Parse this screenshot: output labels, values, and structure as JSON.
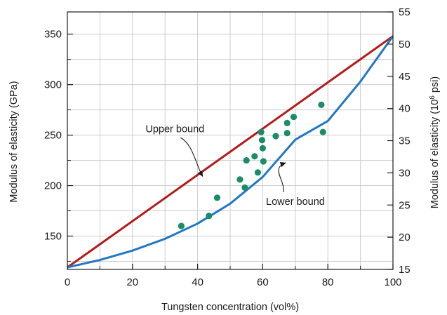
{
  "chart_data": {
    "type": "scatter",
    "xlabel": "Tungsten concentration (vol%)",
    "ylabel": "Modulus of elasticity (GPa)",
    "ylabel_right": {
      "prefix": "Modulus of elasticity (10",
      "sup": "6",
      "suffix": " psi)"
    },
    "xlim": [
      0,
      100
    ],
    "ylim": [
      117,
      372
    ],
    "y2lim": [
      15,
      55
    ],
    "x_ticks": [
      0,
      20,
      40,
      60,
      80,
      100
    ],
    "x_ticks_minor": [
      10,
      30,
      50,
      70,
      90
    ],
    "y_ticks": [
      150,
      200,
      250,
      300,
      350
    ],
    "y_ticks_minor": [
      125,
      175,
      225,
      275,
      325
    ],
    "y2_ticks": [
      15,
      20,
      25,
      30,
      35,
      40,
      45,
      50,
      55
    ],
    "grid": true,
    "colors": {
      "upper": "#b31b1b",
      "lower": "#1f78c4",
      "points": "#1a8c68",
      "grid": "#cccccc"
    },
    "upper_bound": {
      "x": [
        0,
        100
      ],
      "y": [
        119,
        348
      ]
    },
    "lower_bound": {
      "x": [
        0,
        10,
        20,
        30,
        40,
        50,
        60,
        70,
        80,
        90,
        100
      ],
      "y": [
        119,
        126.3,
        135.6,
        147.3,
        162.4,
        182.1,
        208.6,
        245.5,
        264.0,
        303.0,
        348
      ]
    },
    "points": [
      {
        "x": 35,
        "y": 160
      },
      {
        "x": 43.5,
        "y": 170
      },
      {
        "x": 46,
        "y": 188
      },
      {
        "x": 53,
        "y": 206
      },
      {
        "x": 54.5,
        "y": 198
      },
      {
        "x": 55,
        "y": 225
      },
      {
        "x": 57.5,
        "y": 229
      },
      {
        "x": 58.5,
        "y": 213
      },
      {
        "x": 59.5,
        "y": 253
      },
      {
        "x": 59.8,
        "y": 245
      },
      {
        "x": 60,
        "y": 237
      },
      {
        "x": 60.2,
        "y": 224
      },
      {
        "x": 64,
        "y": 249
      },
      {
        "x": 67.5,
        "y": 262
      },
      {
        "x": 67.5,
        "y": 252
      },
      {
        "x": 69.5,
        "y": 268
      },
      {
        "x": 78,
        "y": 280
      },
      {
        "x": 78.5,
        "y": 253
      }
    ],
    "annotations": [
      {
        "label": "Upper bound",
        "text_at": [
          24,
          253
        ],
        "arrow_to": [
          42,
          207
        ]
      },
      {
        "label": "Lower bound",
        "text_at": [
          61,
          181
        ],
        "arrow_to": [
          67.5,
          224
        ]
      }
    ]
  }
}
